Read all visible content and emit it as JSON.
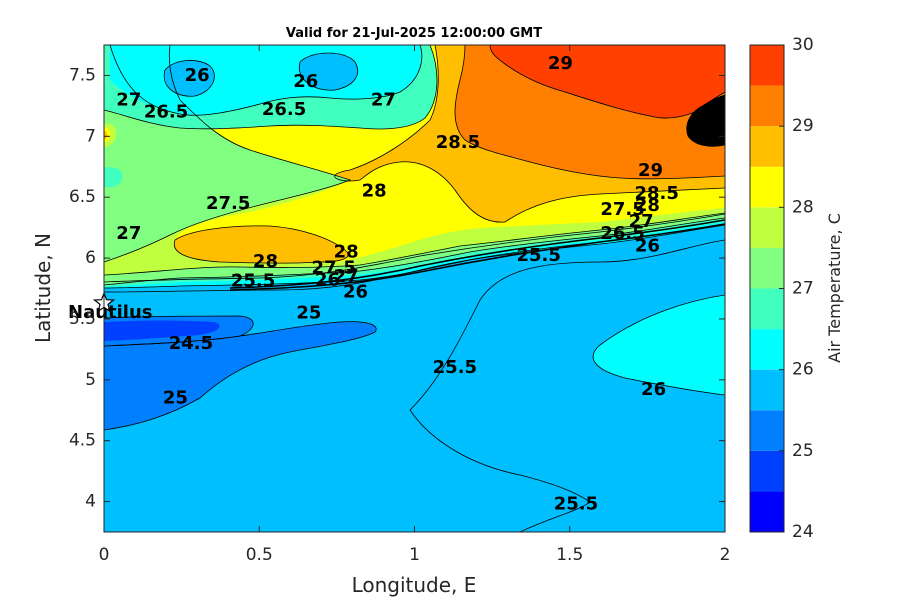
{
  "chart_data": {
    "type": "heatmap",
    "title": "Valid for 21-Jul-2025 12:00:00 GMT",
    "xlabel": "Longitude, E",
    "ylabel": "Latitude, N",
    "xlim": [
      0,
      2
    ],
    "ylim": [
      3.75,
      7.75
    ],
    "xticks": [
      "0",
      "0.5",
      "1",
      "1.5",
      "2"
    ],
    "xtick_values": [
      0,
      0.5,
      1,
      1.5,
      2
    ],
    "yticks": [
      "4",
      "4.5",
      "5",
      "5.5",
      "6",
      "6.5",
      "7",
      "7.5"
    ],
    "ytick_values": [
      4,
      4.5,
      5,
      5.5,
      6,
      6.5,
      7,
      7.5
    ],
    "colorbar": {
      "label": "Air Temperature, C",
      "range": [
        24,
        30
      ],
      "ticks": [
        "24",
        "25",
        "26",
        "27",
        "28",
        "29",
        "30"
      ],
      "tick_values": [
        24,
        25,
        26,
        27,
        28,
        29,
        30
      ],
      "levels": [
        24,
        24.5,
        25,
        25.5,
        26,
        26.5,
        27,
        27.5,
        28,
        28.5,
        29,
        29.5,
        30
      ],
      "colors": [
        "#0000ff",
        "#0040ff",
        "#0080ff",
        "#00bfff",
        "#00ffff",
        "#40ffbf",
        "#80ff80",
        "#bfff40",
        "#ffff00",
        "#ffbf00",
        "#ff8000",
        "#ff4000"
      ]
    },
    "contour_labels": [
      {
        "text": "26",
        "x": 0.3,
        "y": 7.5
      },
      {
        "text": "26",
        "x": 0.65,
        "y": 7.45
      },
      {
        "text": "27",
        "x": 0.08,
        "y": 7.3
      },
      {
        "text": "26.5",
        "x": 0.2,
        "y": 7.2
      },
      {
        "text": "26.5",
        "x": 0.58,
        "y": 7.22
      },
      {
        "text": "27",
        "x": 0.9,
        "y": 7.3
      },
      {
        "text": "29",
        "x": 1.47,
        "y": 7.6
      },
      {
        "text": "28.5",
        "x": 1.14,
        "y": 6.95
      },
      {
        "text": "28",
        "x": 0.87,
        "y": 6.55
      },
      {
        "text": "29",
        "x": 1.76,
        "y": 6.72
      },
      {
        "text": "28.5",
        "x": 1.78,
        "y": 6.53
      },
      {
        "text": "28",
        "x": 1.75,
        "y": 6.43
      },
      {
        "text": "27.5",
        "x": 0.4,
        "y": 6.45
      },
      {
        "text": "27.5",
        "x": 1.67,
        "y": 6.4
      },
      {
        "text": "27",
        "x": 1.73,
        "y": 6.3
      },
      {
        "text": "26.5",
        "x": 1.67,
        "y": 6.2
      },
      {
        "text": "26",
        "x": 1.75,
        "y": 6.1
      },
      {
        "text": "27",
        "x": 0.08,
        "y": 6.2
      },
      {
        "text": "28",
        "x": 0.52,
        "y": 5.97
      },
      {
        "text": "28",
        "x": 0.78,
        "y": 6.05
      },
      {
        "text": "27.5",
        "x": 0.74,
        "y": 5.92
      },
      {
        "text": "27",
        "x": 0.78,
        "y": 5.85
      },
      {
        "text": "26",
        "x": 0.72,
        "y": 5.82
      },
      {
        "text": "25.5",
        "x": 0.48,
        "y": 5.81
      },
      {
        "text": "26",
        "x": 0.81,
        "y": 5.72
      },
      {
        "text": "25",
        "x": 0.66,
        "y": 5.55
      },
      {
        "text": "25.5",
        "x": 1.4,
        "y": 6.02
      },
      {
        "text": "24.5",
        "x": 0.28,
        "y": 5.3
      },
      {
        "text": "25.5",
        "x": 1.13,
        "y": 5.1
      },
      {
        "text": "26",
        "x": 1.77,
        "y": 4.92
      },
      {
        "text": "25",
        "x": 0.23,
        "y": 4.85
      },
      {
        "text": "25.5",
        "x": 1.52,
        "y": 3.98
      }
    ],
    "markers": [
      {
        "label": "Nautilus",
        "x": 0.0,
        "y": 5.63,
        "symbol": "star"
      }
    ]
  }
}
